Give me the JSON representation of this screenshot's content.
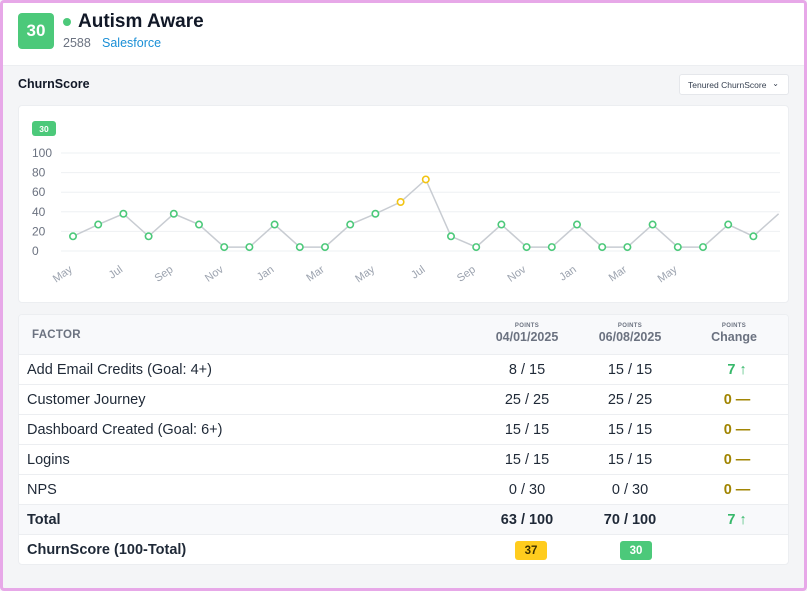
{
  "header": {
    "score": "30",
    "name": "Autism Aware",
    "id": "2588",
    "crm": "Salesforce",
    "colors": {
      "score_badge": "#4cc97a",
      "status_dot": "#4cc97a",
      "crm_link": "#1a8fd6"
    }
  },
  "section": {
    "title": "ChurnScore",
    "select_value": "Tenured ChurnScore",
    "select_caret_icon": "chevron-down-icon"
  },
  "chart_data": {
    "type": "line",
    "badge": "30",
    "yticks": [
      "100",
      "80",
      "60",
      "40",
      "20",
      "0"
    ],
    "ylim": [
      0,
      100
    ],
    "xlabels": [
      "May",
      "Jul",
      "Sep",
      "Nov",
      "Jan",
      "Mar",
      "May",
      "Jul",
      "Sep",
      "Nov",
      "Jan",
      "Mar",
      "May"
    ],
    "values": [
      15,
      27,
      38,
      15,
      38,
      27,
      4,
      4,
      27,
      4,
      4,
      27,
      38,
      50,
      73,
      15,
      4,
      27,
      4,
      4,
      27,
      4,
      4,
      27,
      4,
      4,
      27,
      15,
      38
    ],
    "point_colors": [
      "g",
      "g",
      "g",
      "g",
      "g",
      "g",
      "g",
      "g",
      "g",
      "g",
      "g",
      "g",
      "g",
      "y",
      "y",
      "g",
      "g",
      "g",
      "g",
      "g",
      "g",
      "g",
      "g",
      "g",
      "g",
      "g",
      "g",
      "g",
      "n"
    ],
    "colors": {
      "line": "#c8ccd2",
      "green": "#4cc97a",
      "yellow": "#f2c413",
      "grid": "#eef0f3",
      "badge": "#4cc97a"
    }
  },
  "table": {
    "header": {
      "factor": "FACTOR",
      "col1_small": "POINTS",
      "col1": "04/01/2025",
      "col2_small": "POINTS",
      "col2": "06/08/2025",
      "col3_small": "POINTS",
      "col3": "Change"
    },
    "rows": [
      {
        "name": "Add Email Credits (Goal: 4+)",
        "a": "8 / 15",
        "b": "15 / 15",
        "change": "7 ↑",
        "dir": "up"
      },
      {
        "name": "Customer Journey",
        "a": "25 / 25",
        "b": "25 / 25",
        "change": "0 —",
        "dir": "flat"
      },
      {
        "name": "Dashboard Created (Goal: 6+)",
        "a": "15 / 15",
        "b": "15 / 15",
        "change": "0 —",
        "dir": "flat"
      },
      {
        "name": "Logins",
        "a": "15 / 15",
        "b": "15 / 15",
        "change": "0 —",
        "dir": "flat"
      },
      {
        "name": "NPS",
        "a": "0 / 30",
        "b": "0 / 30",
        "change": "0 —",
        "dir": "flat"
      }
    ],
    "total": {
      "name": "Total",
      "a": "63 / 100",
      "b": "70 / 100",
      "change": "7 ↑"
    },
    "final": {
      "name": "ChurnScore (100-Total)",
      "a": "37",
      "b": "30"
    },
    "colors": {
      "up": "#36b86a",
      "flat": "#a08400",
      "pill_yellow": "#ffcc1e",
      "pill_green": "#4cc97a"
    }
  }
}
